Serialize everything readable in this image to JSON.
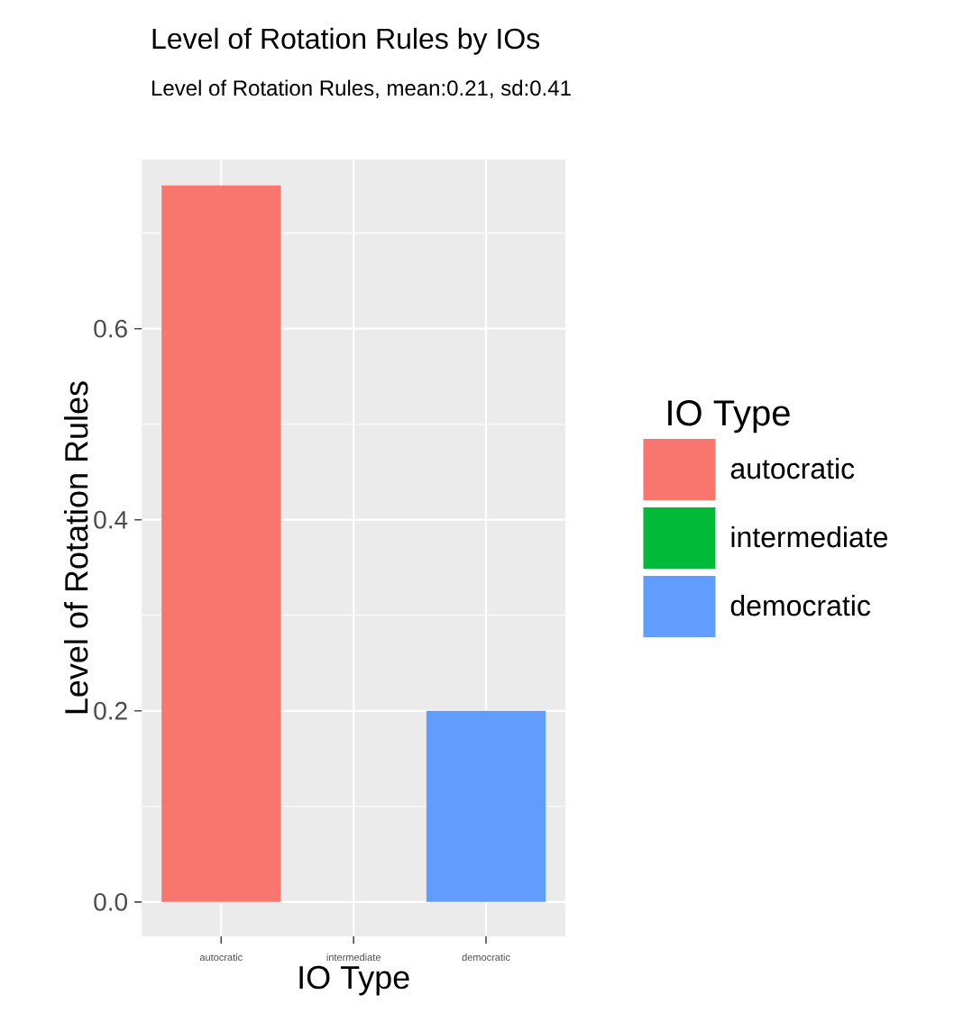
{
  "chart_data": {
    "type": "bar",
    "title": "Level of Rotation Rules by IOs",
    "subtitle": "Level of Rotation Rules, mean:0.21, sd:0.41",
    "xlabel": "IO Type",
    "ylabel": "Level of Rotation Rules",
    "legend_title": "IO Type",
    "categories": [
      "autocratic",
      "intermediate",
      "democratic"
    ],
    "series": [
      {
        "name": "autocratic",
        "color": "#f8766d",
        "values": [
          0.75,
          null,
          null
        ]
      },
      {
        "name": "intermediate",
        "color": "#00ba38",
        "values": [
          null,
          0,
          null
        ]
      },
      {
        "name": "democratic",
        "color": "#619cff",
        "values": [
          null,
          null,
          0.2
        ]
      }
    ],
    "ylim": [
      -0.036,
      0.777
    ],
    "yticks": [
      {
        "value": 0,
        "label": "0.0"
      },
      {
        "value": 0.2,
        "label": "0.2"
      },
      {
        "value": 0.4,
        "label": "0.4"
      },
      {
        "value": 0.6,
        "label": "0.6"
      }
    ],
    "grid": true,
    "legend": "right"
  }
}
